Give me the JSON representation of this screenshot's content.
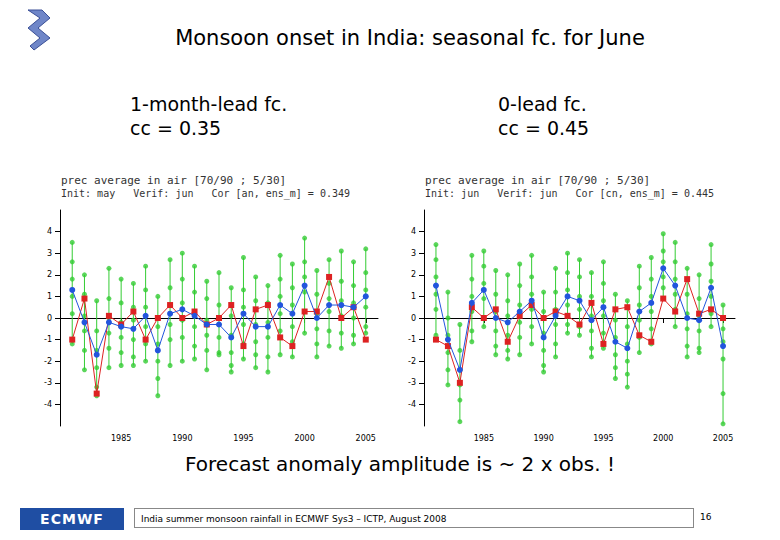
{
  "slide": {
    "title": "Monsoon onset in India: seasonal fc. for June",
    "caption": "Forecast anomaly amplitude is ~ 2 x obs. !",
    "footer": {
      "logo": "ECMWF",
      "text": "India summer monsoon rainfall in ECMWF Sys3 – ICTP, August 2008",
      "page": "16"
    }
  },
  "chart_data": [
    {
      "type": "scatter",
      "annotations": [
        "1-month-lead fc.",
        "cc = 0.35"
      ],
      "title": "prec average in air [70/90 ; 5/30]",
      "subtitle": "Init: may   Verif: jun   Cor [an, ens_m] = 0.349",
      "x": [
        1981,
        1982,
        1983,
        1984,
        1985,
        1986,
        1987,
        1988,
        1989,
        1990,
        1991,
        1992,
        1993,
        1994,
        1995,
        1996,
        1997,
        1998,
        1999,
        2000,
        2001,
        2002,
        2003,
        2004,
        2005
      ],
      "xlim": [
        1980,
        2006
      ],
      "xticks": [
        1985,
        1990,
        1995,
        2000,
        2005
      ],
      "ylim": [
        -5,
        5
      ],
      "yticks": [
        -4,
        -3,
        -2,
        -1,
        0,
        1,
        2,
        3,
        4
      ],
      "grid": false,
      "members": {
        "color": "#33cc33",
        "marker": "circle",
        "values": [
          [
            3.5,
            2.6,
            1.8,
            1.0,
            0.2,
            -1.2
          ],
          [
            2.0,
            1.1,
            0.1,
            -0.6,
            -1.5,
            -2.4
          ],
          [
            0.8,
            -0.6,
            -1.5,
            -2.3,
            -3.2,
            -3.6
          ],
          [
            2.3,
            0.9,
            0.0,
            -0.7,
            -1.4,
            -2.3
          ],
          [
            1.8,
            0.7,
            -0.2,
            -0.9,
            -1.6,
            -2.2
          ],
          [
            1.6,
            0.5,
            -0.1,
            -1.0,
            -1.8,
            -2.2
          ],
          [
            2.4,
            1.3,
            0.5,
            -0.4,
            -1.2,
            -2.0
          ],
          [
            1.0,
            -0.4,
            -1.2,
            -2.0,
            -2.8,
            -3.6
          ],
          [
            2.7,
            1.4,
            0.6,
            -0.3,
            -1.0,
            -2.2
          ],
          [
            3.0,
            1.8,
            0.7,
            -0.1,
            -0.9,
            -2.0
          ],
          [
            2.4,
            1.2,
            0.3,
            -0.4,
            -1.3,
            -1.9
          ],
          [
            1.7,
            0.9,
            -0.1,
            -0.8,
            -1.5,
            -2.4
          ],
          [
            2.1,
            0.6,
            -0.3,
            -0.9,
            -1.6,
            -1.7
          ],
          [
            1.4,
            0.1,
            -0.8,
            -1.6,
            -2.2,
            -2.5
          ],
          [
            2.8,
            1.3,
            0.5,
            -0.3,
            -1.2,
            -1.9
          ],
          [
            1.9,
            0.8,
            -0.3,
            -1.1,
            -1.7,
            -2.3
          ],
          [
            1.5,
            0.7,
            -0.2,
            -0.9,
            -1.8,
            -2.5
          ],
          [
            2.9,
            1.8,
            1.0,
            0.2,
            -0.6,
            -1.7
          ],
          [
            2.5,
            1.4,
            0.6,
            -0.4,
            -1.1,
            -1.8
          ],
          [
            3.7,
            2.6,
            1.9,
            1.2,
            0.3,
            -0.7
          ],
          [
            2.2,
            1.1,
            0.2,
            -0.5,
            -1.2,
            -1.8
          ],
          [
            2.7,
            1.6,
            0.9,
            0.3,
            -0.6,
            -1.3
          ],
          [
            3.1,
            1.7,
            0.8,
            0.1,
            -0.7,
            -1.4
          ],
          [
            2.6,
            1.5,
            0.7,
            0.0,
            -0.8,
            -1.2
          ],
          [
            3.2,
            2.1,
            1.3,
            0.5,
            -0.4,
            -0.7
          ]
        ]
      },
      "series": [
        {
          "type": "line",
          "color": "#dd2222",
          "marker": "square",
          "values": [
            -1.0,
            0.9,
            -3.5,
            0.1,
            -0.3,
            0.3,
            -1.0,
            0.0,
            0.6,
            0.0,
            0.3,
            -0.3,
            0.0,
            0.6,
            -1.3,
            0.4,
            0.6,
            -0.9,
            -1.3,
            0.3,
            0.3,
            1.9,
            0.0,
            0.5,
            -1.0
          ]
        },
        {
          "type": "line",
          "color": "#2255dd",
          "marker": "circle",
          "values": [
            1.3,
            -0.2,
            -1.7,
            -0.2,
            -0.4,
            -0.5,
            0.1,
            -1.5,
            0.2,
            0.4,
            0.1,
            -0.3,
            -0.3,
            -0.9,
            0.2,
            -0.4,
            -0.4,
            0.6,
            0.2,
            1.5,
            0.0,
            0.6,
            0.6,
            0.5,
            1.0
          ]
        }
      ]
    },
    {
      "type": "scatter",
      "annotations": [
        "0-lead fc.",
        "cc = 0.45"
      ],
      "title": "prec average in air [70/90 ; 5/30]",
      "subtitle": "Init: jun   Verif: jun   Cor [cn, ens_m] = 0.445",
      "x": [
        1981,
        1982,
        1983,
        1984,
        1985,
        1986,
        1987,
        1988,
        1989,
        1990,
        1991,
        1992,
        1993,
        1994,
        1995,
        1996,
        1997,
        1998,
        1999,
        2000,
        2001,
        2002,
        2003,
        2004,
        2005
      ],
      "xlim": [
        1980,
        2006
      ],
      "xticks": [
        1985,
        1990,
        1995,
        2000,
        2005
      ],
      "ylim": [
        -5,
        5
      ],
      "yticks": [
        -4,
        -3,
        -2,
        -1,
        0,
        1,
        2,
        3,
        4
      ],
      "grid": false,
      "members": {
        "color": "#33cc33",
        "marker": "circle",
        "values": [
          [
            3.4,
            2.7,
            1.9,
            1.1,
            0.4,
            -0.8
          ],
          [
            1.2,
            0.0,
            -0.8,
            -1.6,
            -2.4,
            -3.1
          ],
          [
            -0.3,
            -1.5,
            -2.4,
            -3.1,
            -3.8,
            -4.8
          ],
          [
            2.9,
            1.8,
            1.0,
            0.3,
            -0.6,
            -1.1
          ],
          [
            3.1,
            2.4,
            1.6,
            0.9,
            0.0,
            -0.4
          ],
          [
            2.2,
            1.1,
            0.3,
            -0.6,
            -1.3,
            -1.7
          ],
          [
            2.0,
            0.8,
            0.1,
            -0.8,
            -1.5,
            -1.9
          ],
          [
            2.5,
            1.5,
            0.6,
            -0.2,
            -0.9,
            -1.7
          ],
          [
            2.9,
            1.9,
            1.1,
            0.4,
            -0.4,
            -1.2
          ],
          [
            1.2,
            0.3,
            -0.7,
            -1.5,
            -2.2,
            -2.5
          ],
          [
            2.3,
            1.2,
            0.4,
            -0.3,
            -1.2,
            -1.8
          ],
          [
            3.0,
            2.1,
            1.3,
            0.6,
            -0.3,
            -0.7
          ],
          [
            2.7,
            1.9,
            1.0,
            0.4,
            -0.4,
            -0.8
          ],
          [
            2.1,
            1.0,
            0.1,
            -0.6,
            -1.4,
            -1.8
          ],
          [
            2.6,
            1.6,
            0.8,
            0.1,
            -0.7,
            -1.4
          ],
          [
            1.1,
            -0.1,
            -0.9,
            -1.7,
            -2.3,
            -2.8
          ],
          [
            0.8,
            -0.4,
            -1.2,
            -2.0,
            -2.6,
            -3.2
          ],
          [
            2.4,
            1.4,
            0.6,
            -0.1,
            -0.9,
            -1.6
          ],
          [
            2.8,
            1.8,
            1.0,
            0.3,
            -0.5,
            -1.2
          ],
          [
            3.9,
            3.1,
            2.6,
            1.9,
            1.4,
            0.9
          ],
          [
            3.5,
            2.6,
            1.8,
            1.1,
            0.4,
            -0.4
          ],
          [
            2.3,
            1.1,
            0.2,
            -0.5,
            -1.3,
            -1.8
          ],
          [
            2.0,
            0.9,
            0.1,
            -0.6,
            -1.4,
            -1.6
          ],
          [
            3.4,
            2.5,
            1.7,
            1.0,
            0.2,
            -0.4
          ],
          [
            0.6,
            -0.5,
            -1.1,
            -1.9,
            -3.5,
            -4.9
          ]
        ]
      },
      "series": [
        {
          "type": "line",
          "color": "#dd2222",
          "marker": "square",
          "values": [
            -1.0,
            -1.3,
            -3.0,
            0.5,
            0.0,
            0.4,
            -1.1,
            0.1,
            0.6,
            0.0,
            0.3,
            0.1,
            -0.3,
            0.7,
            -1.2,
            0.4,
            0.5,
            -0.8,
            -1.1,
            0.9,
            0.3,
            1.8,
            0.2,
            0.4,
            0.0
          ]
        },
        {
          "type": "line",
          "color": "#2255dd",
          "marker": "circle",
          "values": [
            1.5,
            -1.0,
            -2.4,
            0.7,
            1.3,
            0.0,
            -0.2,
            0.3,
            0.8,
            -0.9,
            0.1,
            1.0,
            0.8,
            -0.1,
            0.5,
            -1.1,
            -1.4,
            0.3,
            0.7,
            2.3,
            1.5,
            0.0,
            -0.1,
            1.4,
            -1.3
          ]
        }
      ]
    }
  ]
}
